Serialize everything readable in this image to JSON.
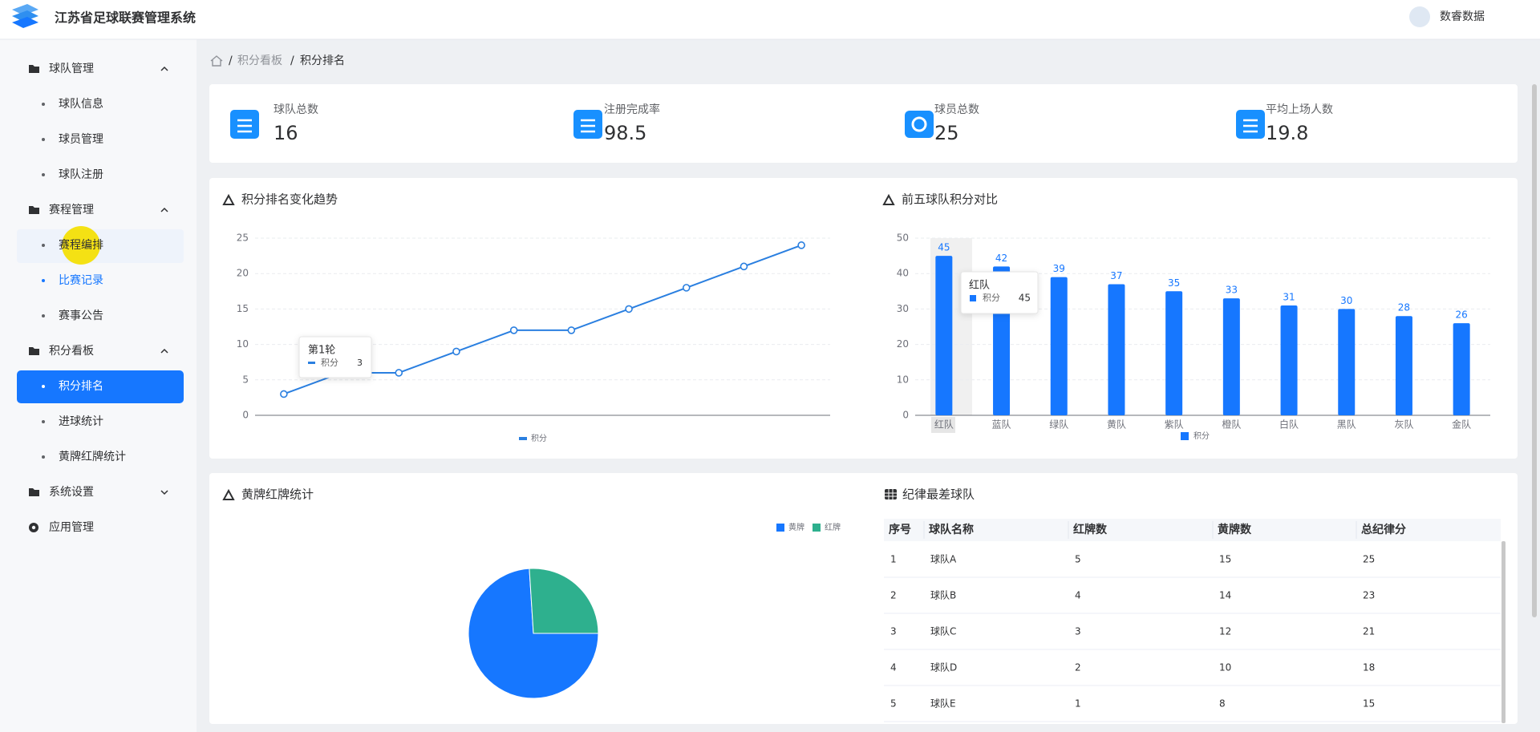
{
  "header": {
    "title": "江苏省足球联赛管理系统",
    "user": "数睿数据"
  },
  "menu": [
    {
      "label": "球队管理",
      "children": [
        "球队信息",
        "球员管理",
        "球队注册"
      ]
    },
    {
      "label": "赛程管理",
      "children": [
        "赛程编排",
        "比赛记录",
        "赛事公告"
      ]
    },
    {
      "label": "积分看板",
      "children": [
        "积分排名",
        "进球统计",
        "黄牌红牌统计"
      ]
    },
    {
      "label": "系统设置"
    },
    {
      "label": "应用管理"
    }
  ],
  "breadcrumb": [
    "积分看板",
    "积分排名"
  ],
  "stats": [
    {
      "label": "球队总数",
      "value": 16
    },
    {
      "label": "注册完成率",
      "value": 98.5
    },
    {
      "label": "球员总数",
      "value": 25
    },
    {
      "label": "平均上场人数",
      "value": 19.8
    }
  ],
  "chart_data": [
    {
      "type": "line",
      "title": "积分排名变化趋势",
      "categories": [
        "第1轮",
        null,
        null,
        null,
        null,
        null,
        null,
        null,
        null,
        null
      ],
      "series": [
        {
          "name": "积分",
          "color": "#2a7fe0",
          "values": [
            3,
            6,
            6,
            9,
            12,
            12,
            15,
            18,
            21,
            24
          ]
        }
      ],
      "ylim": [
        0,
        25
      ],
      "yticks": [
        0,
        5,
        10,
        15,
        20,
        25
      ],
      "grid": true
    },
    {
      "type": "bar",
      "title": "前五球队积分对比",
      "categories": [
        "红队",
        "蓝队",
        "绿队",
        "黄队",
        "紫队",
        "橙队",
        "白队",
        "黑队",
        "灰队",
        "金队"
      ],
      "series": [
        {
          "name": "积分",
          "color": "#1677ff",
          "values": [
            45,
            42,
            39,
            37,
            35,
            33,
            31,
            30,
            28,
            26
          ]
        }
      ],
      "ylim": [
        0,
        50
      ],
      "yticks": [
        0,
        10,
        20,
        30,
        40,
        50
      ],
      "grid": true
    },
    {
      "type": "pie",
      "title": "黄牌红牌统计",
      "categories": [
        "黄牌",
        "红牌"
      ],
      "values": [
        74,
        26
      ],
      "colors": [
        "#1677ff",
        "#2eb08e"
      ]
    }
  ],
  "table": {
    "title": "纪律最差球队",
    "columns": [
      "序号",
      "球队名称",
      "红牌数",
      "黄牌数",
      "总纪律分"
    ],
    "rows": [
      [
        1,
        "球队A",
        5,
        15,
        25
      ],
      [
        2,
        "球队B",
        4,
        14,
        23
      ],
      [
        3,
        "球队C",
        3,
        12,
        21
      ],
      [
        4,
        "球队D",
        2,
        10,
        18
      ],
      [
        5,
        "球队E",
        1,
        8,
        15
      ]
    ]
  }
}
